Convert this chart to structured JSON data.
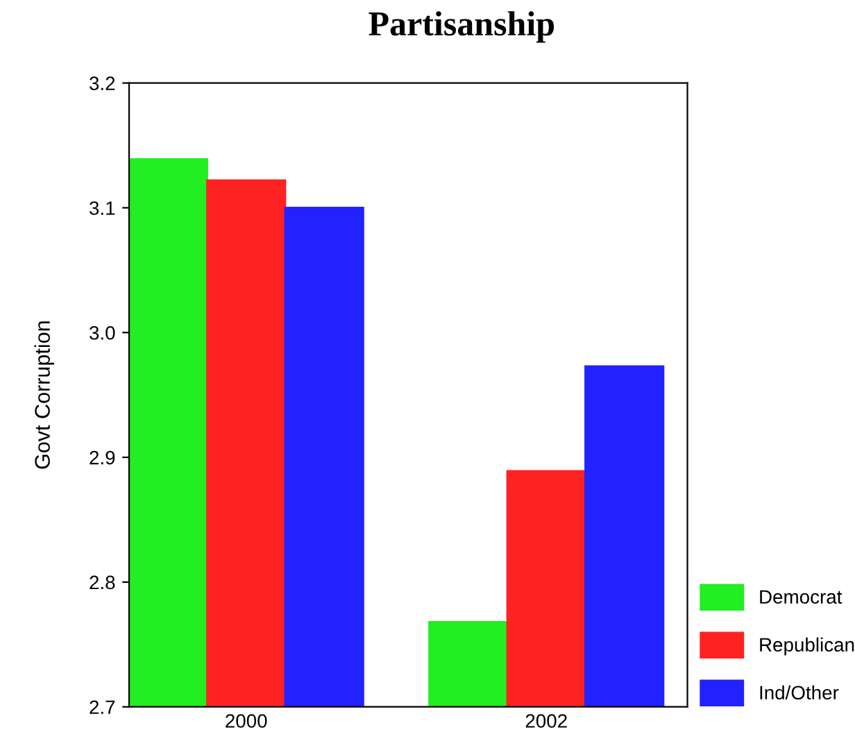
{
  "chart_data": {
    "type": "bar",
    "title": "Partisanship",
    "ylabel": "Govt Corruption",
    "categories": [
      "2000",
      "2002"
    ],
    "series": [
      {
        "name": "Democrat",
        "color": "#22ee22",
        "values": [
          3.139,
          2.768
        ]
      },
      {
        "name": "Republican",
        "color": "#ff2222",
        "values": [
          3.122,
          2.889
        ]
      },
      {
        "name": "Ind/Other",
        "color": "#2222ff",
        "values": [
          3.1,
          2.973
        ]
      }
    ],
    "ylim": [
      2.7,
      3.2
    ],
    "yticks": [
      2.7,
      2.8,
      2.9,
      {
        "value": 3.0,
        "label": "3.0"
      },
      3.1,
      3.2
    ],
    "legend": "bottom right",
    "grid": false
  }
}
